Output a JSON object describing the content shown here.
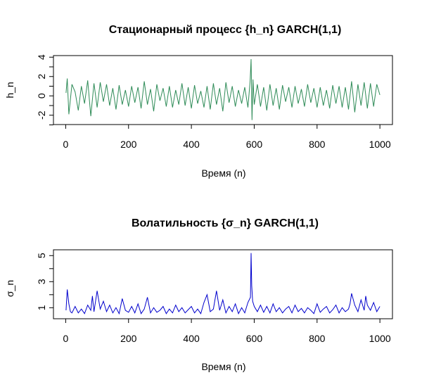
{
  "chart_data": [
    {
      "type": "line",
      "title": "Стационарный процесс {h_n} GARCH(1,1)",
      "xlabel": "Время (n)",
      "ylabel": "h_n",
      "xlim": [
        1,
        1000
      ],
      "ylim": [
        -2.7,
        3.9
      ],
      "xticks": [
        0,
        200,
        400,
        600,
        800,
        1000
      ],
      "yticks": [
        -2,
        0,
        2,
        4
      ],
      "yticks_minor": [
        -3,
        -1,
        1,
        3
      ],
      "grid": false,
      "color": "#2e8b57",
      "series": [
        {
          "name": "",
          "x": [
            1,
            5,
            10,
            20,
            30,
            40,
            50,
            60,
            70,
            80,
            90,
            100,
            110,
            120,
            130,
            140,
            150,
            160,
            170,
            180,
            190,
            200,
            210,
            220,
            230,
            240,
            250,
            260,
            270,
            280,
            290,
            300,
            310,
            320,
            330,
            340,
            350,
            360,
            370,
            380,
            390,
            400,
            410,
            420,
            430,
            440,
            450,
            460,
            470,
            480,
            490,
            500,
            510,
            520,
            530,
            540,
            550,
            560,
            570,
            580,
            587,
            590,
            593,
            596,
            600,
            610,
            620,
            630,
            640,
            650,
            660,
            670,
            680,
            690,
            700,
            710,
            720,
            730,
            740,
            750,
            760,
            770,
            780,
            790,
            800,
            810,
            820,
            830,
            840,
            850,
            860,
            870,
            880,
            890,
            900,
            910,
            920,
            930,
            940,
            950,
            960,
            970,
            980,
            990,
            1000
          ],
          "values": [
            0.3,
            1.8,
            -1.9,
            1.2,
            0.4,
            -1.5,
            1.0,
            -0.8,
            1.6,
            -2.1,
            1.3,
            -1.2,
            1.4,
            -0.6,
            1.2,
            -1.0,
            0.8,
            -1.4,
            1.1,
            -0.9,
            0.6,
            -1.1,
            1.0,
            -0.7,
            0.9,
            -1.3,
            1.5,
            -0.9,
            0.7,
            -1.6,
            1.2,
            -0.5,
            0.8,
            -1.1,
            1.0,
            -1.2,
            0.6,
            -0.9,
            1.3,
            -1.0,
            0.9,
            -1.3,
            1.1,
            -0.8,
            0.5,
            -1.2,
            1.0,
            -1.4,
            1.3,
            -0.9,
            0.8,
            -1.6,
            1.4,
            -0.7,
            1.0,
            -1.1,
            0.6,
            -0.8,
            0.9,
            -1.2,
            1.5,
            3.8,
            -2.5,
            1.7,
            -0.9,
            1.2,
            -1.1,
            0.9,
            -1.5,
            1.2,
            -1.0,
            0.8,
            -1.4,
            1.1,
            -0.6,
            0.9,
            -1.2,
            1.0,
            -0.8,
            0.7,
            -1.1,
            1.2,
            -0.7,
            0.8,
            -1.2,
            0.9,
            -1.0,
            0.6,
            -1.3,
            1.1,
            -0.8,
            1.0,
            -1.2,
            0.9,
            -1.4,
            1.5,
            -1.7,
            1.2,
            -1.0,
            1.4,
            -1.3,
            1.3,
            -1.1,
            1.2,
            0.1
          ]
        }
      ]
    },
    {
      "type": "line",
      "title": "Волатильность {σ_n} GARCH(1,1)",
      "xlabel": "Время (n)",
      "ylabel": "σ_n",
      "xlim": [
        1,
        1000
      ],
      "ylim": [
        0.35,
        5.25
      ],
      "xticks": [
        0,
        200,
        400,
        600,
        800,
        1000
      ],
      "yticks": [
        1,
        3,
        5
      ],
      "yticks_minor": [
        2,
        4
      ],
      "grid": false,
      "color": "#0000cd",
      "series": [
        {
          "name": "",
          "x": [
            1,
            5,
            10,
            15,
            20,
            30,
            40,
            50,
            60,
            70,
            80,
            85,
            90,
            100,
            110,
            120,
            130,
            140,
            150,
            160,
            170,
            180,
            190,
            200,
            210,
            220,
            230,
            240,
            250,
            260,
            270,
            280,
            290,
            300,
            310,
            320,
            330,
            340,
            350,
            360,
            370,
            380,
            390,
            400,
            410,
            420,
            430,
            440,
            450,
            460,
            470,
            480,
            490,
            500,
            510,
            520,
            530,
            540,
            550,
            560,
            570,
            580,
            588,
            590,
            592,
            595,
            600,
            610,
            620,
            630,
            640,
            650,
            660,
            670,
            680,
            690,
            700,
            710,
            720,
            730,
            740,
            750,
            760,
            770,
            780,
            790,
            800,
            810,
            820,
            830,
            840,
            850,
            860,
            870,
            880,
            890,
            900,
            905,
            910,
            920,
            930,
            940,
            950,
            955,
            960,
            970,
            980,
            990,
            1000
          ],
          "values": [
            0.8,
            2.4,
            1.3,
            0.7,
            0.6,
            1.1,
            0.6,
            0.9,
            0.55,
            1.2,
            0.8,
            1.9,
            0.7,
            2.3,
            0.9,
            1.5,
            0.7,
            1.2,
            0.6,
            1.0,
            0.55,
            1.7,
            0.8,
            0.65,
            1.1,
            0.6,
            1.3,
            0.55,
            0.9,
            1.8,
            0.6,
            1.0,
            0.65,
            0.8,
            1.1,
            0.55,
            0.9,
            0.6,
            1.2,
            0.7,
            1.0,
            0.6,
            0.85,
            1.1,
            0.6,
            0.9,
            0.55,
            1.4,
            2.0,
            0.7,
            0.9,
            2.3,
            0.8,
            1.6,
            0.6,
            1.1,
            0.7,
            1.3,
            0.55,
            1.0,
            0.6,
            1.4,
            1.8,
            5.2,
            2.7,
            1.5,
            1.1,
            0.7,
            1.2,
            0.65,
            1.1,
            0.6,
            1.3,
            0.7,
            1.0,
            0.6,
            0.9,
            1.1,
            0.6,
            1.2,
            0.7,
            0.95,
            0.6,
            1.0,
            0.8,
            0.55,
            1.3,
            0.65,
            0.9,
            1.1,
            0.6,
            0.85,
            1.2,
            0.6,
            1.0,
            0.7,
            0.9,
            1.3,
            2.1,
            1.2,
            0.7,
            1.6,
            0.8,
            1.9,
            1.2,
            0.8,
            1.4,
            0.7,
            1.1
          ]
        }
      ]
    }
  ]
}
